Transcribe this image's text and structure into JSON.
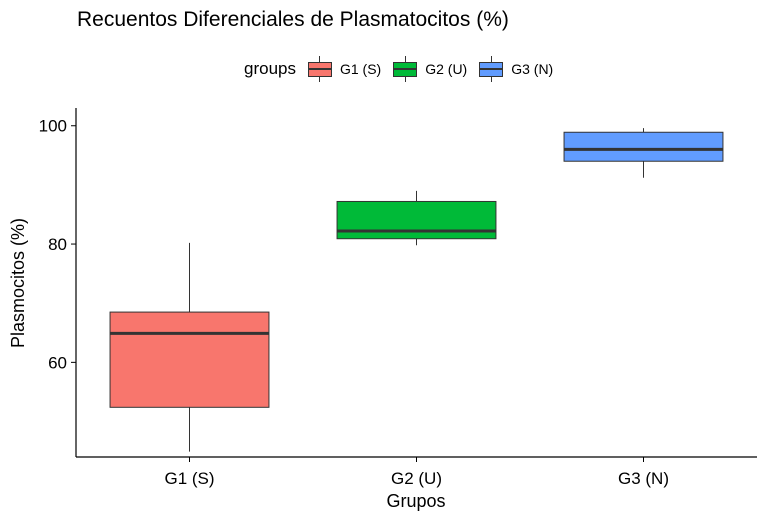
{
  "chart_data": {
    "type": "boxplot",
    "title": "Recuentos Diferenciales de Plasmatocitos (%)",
    "xlabel": "Grupos",
    "ylabel": "Plasmocitos (%)",
    "ylim": [
      44,
      103
    ],
    "yticks": [
      60,
      80,
      100
    ],
    "grid": false,
    "legend": {
      "title": "groups",
      "position": "top",
      "entries": [
        "G1 (S)",
        "G2 (U)",
        "G3 (N)"
      ]
    },
    "categories": [
      "G1 (S)",
      "G2 (U)",
      "G3 (N)"
    ],
    "series": [
      {
        "name": "G1 (S)",
        "color": "#F8766D",
        "min": 44.9,
        "q1": 52.4,
        "median": 64.9,
        "q3": 68.5,
        "max": 80.2
      },
      {
        "name": "G2 (U)",
        "color": "#00BA38",
        "min": 79.8,
        "q1": 80.9,
        "median": 82.2,
        "q3": 87.2,
        "max": 89.0
      },
      {
        "name": "G3 (N)",
        "color": "#619CFF",
        "min": 91.2,
        "q1": 94.0,
        "median": 96.0,
        "q3": 98.9,
        "max": 99.6
      }
    ]
  }
}
